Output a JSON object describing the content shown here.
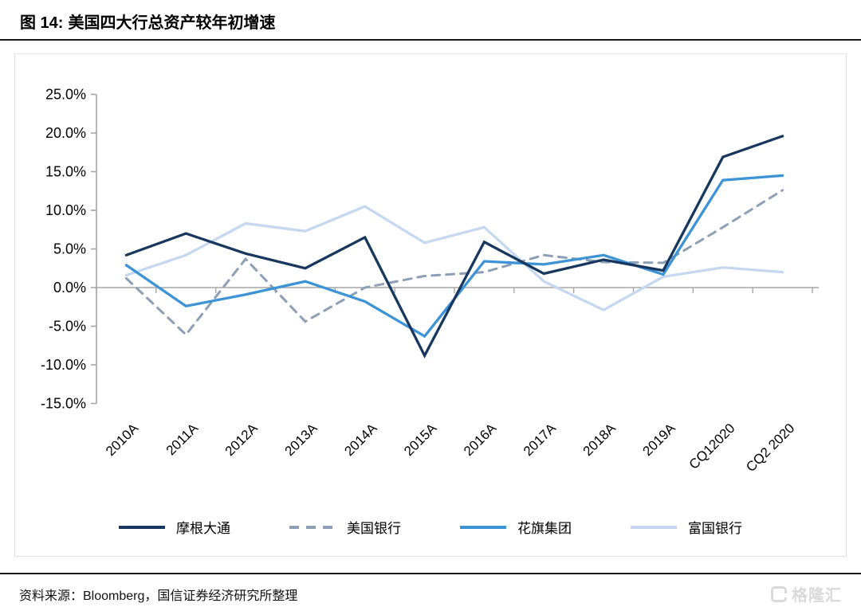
{
  "header": {
    "figure_label": "图 14:",
    "title": "美国四大行总资产较年初增速"
  },
  "chart_data": {
    "type": "line",
    "title": "美国四大行总资产较年初增速",
    "categories": [
      "2010A",
      "2011A",
      "2012A",
      "2013A",
      "2014A",
      "2015A",
      "2016A",
      "2017A",
      "2018A",
      "2019A",
      "CQ12020",
      "CQ2 2020"
    ],
    "series": [
      {
        "name": "摩根大通",
        "color": "#17375E",
        "style": "solid",
        "values": [
          4.2,
          7.0,
          4.4,
          2.5,
          6.5,
          -8.8,
          5.9,
          1.8,
          3.6,
          2.2,
          16.9,
          19.6
        ]
      },
      {
        "name": "美国银行",
        "color": "#8C9FB5",
        "style": "dashed",
        "values": [
          1.2,
          -6.1,
          3.7,
          -4.4,
          0.0,
          1.5,
          2.0,
          4.2,
          3.3,
          3.2,
          7.8,
          12.6
        ]
      },
      {
        "name": "花旗集团",
        "color": "#3C93D5",
        "style": "solid",
        "values": [
          2.9,
          -2.4,
          -0.9,
          0.8,
          -1.8,
          -6.3,
          3.4,
          3.0,
          4.2,
          1.7,
          13.9,
          14.5
        ]
      },
      {
        "name": "富国银行",
        "color": "#C5D8F0",
        "style": "solid",
        "values": [
          1.6,
          4.2,
          8.3,
          7.3,
          10.5,
          5.8,
          7.8,
          0.8,
          -2.9,
          1.4,
          2.6,
          2.0
        ]
      }
    ],
    "ylim": [
      -15,
      25
    ],
    "ytick_step": 5,
    "ytick_labels": [
      "25.0%",
      "20.0%",
      "15.0%",
      "10.0%",
      "5.0%",
      "0.0%",
      "-5.0%",
      "-10.0%",
      "-15.0%"
    ],
    "xlabel": "",
    "ylabel": "",
    "grid": "zero-line-only",
    "legend_position": "bottom",
    "axis_color": "#A6A6A6"
  },
  "footer": {
    "source_text": "资料来源：Bloomberg，国信证券经济研究所整理",
    "logo_text": "格隆汇"
  }
}
